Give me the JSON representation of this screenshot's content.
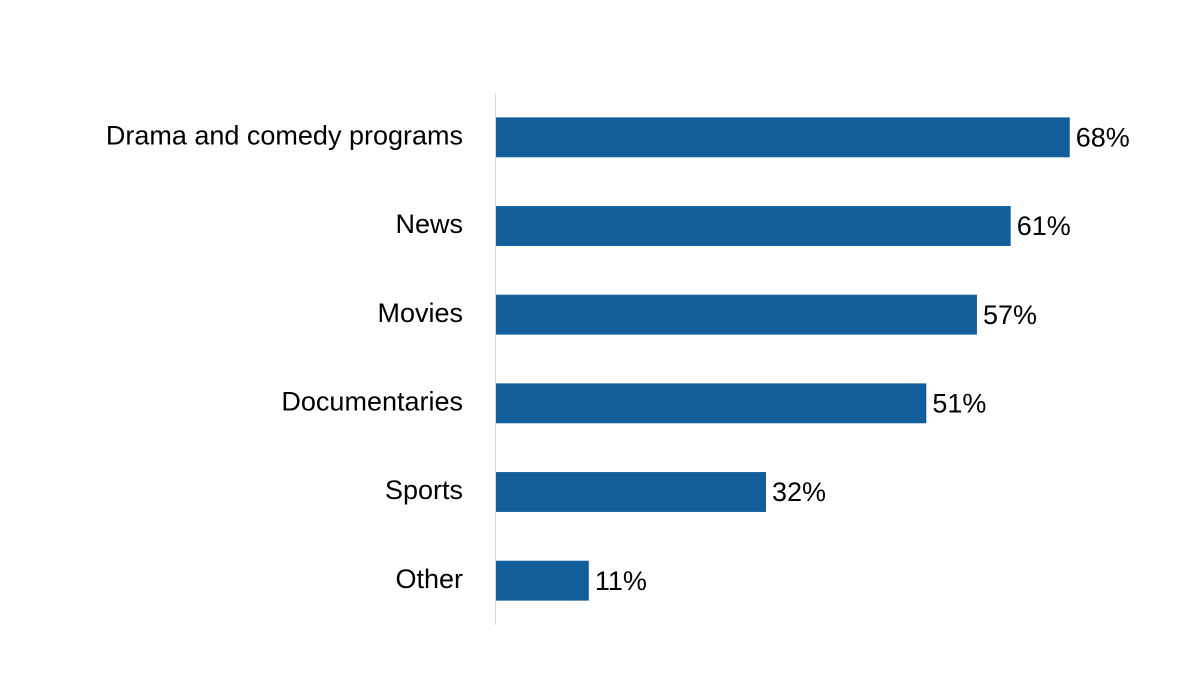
{
  "chart_data": {
    "type": "bar",
    "orientation": "horizontal",
    "categories": [
      "Drama and comedy programs",
      "News",
      "Movies",
      "Documentaries",
      "Sports",
      "Other"
    ],
    "values": [
      68,
      61,
      57,
      51,
      32,
      11
    ],
    "value_labels": [
      "68%",
      "61%",
      "57%",
      "51%",
      "32%",
      "11%"
    ],
    "color": "#135f9c",
    "xlim": [
      0,
      80
    ]
  }
}
